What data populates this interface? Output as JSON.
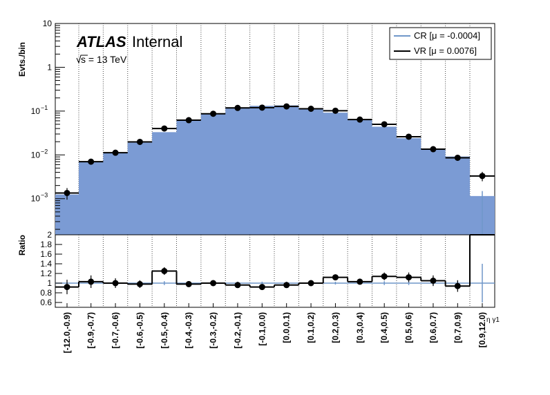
{
  "chart_data": {
    "type": "histogram",
    "atlas_label": "ATLAS",
    "atlas_status": "Internal",
    "energy_prefix": "s",
    "energy_suffix": " = 13 TeV",
    "x_axis_label": "η γ1",
    "colors": {
      "cr_fill": "#7b9bd4",
      "cr_line": "#6f96c9",
      "vr": "#000000",
      "grid": "#444444"
    },
    "categories": [
      "[-12.0,-0.9)",
      "[-0.9,-0.7)",
      "[-0.7,-0.6)",
      "[-0.6,-0.5)",
      "[-0.5,-0.4)",
      "[-0.4,-0.3)",
      "[-0.3,-0.2)",
      "[-0.2,-0.1)",
      "[-0.1,0.0)",
      "[0.0,0.1)",
      "[0.1,0.2)",
      "[0.2,0.3)",
      "[0.3,0.4)",
      "[0.4,0.5)",
      "[0.5,0.6)",
      "[0.6,0.7)",
      "[0.7,0.9)",
      "[0.9,12.0)"
    ],
    "top_panel": {
      "ylabel": "Evts./bin",
      "scale": "log",
      "ylim": [
        0.00015,
        10
      ],
      "yticks": [
        {
          "value": 10,
          "label": "10"
        },
        {
          "value": 1,
          "label": "1"
        },
        {
          "value": 0.1,
          "base": "10",
          "exp": "−1"
        },
        {
          "value": 0.01,
          "base": "10",
          "exp": "−2"
        },
        {
          "value": 0.001,
          "base": "10",
          "exp": "−3"
        }
      ]
    },
    "series": [
      {
        "name": "CR [μ = -0.0004]",
        "style": "filled-histogram",
        "values": [
          0.00125,
          0.0068,
          0.011,
          0.019,
          0.033,
          0.06,
          0.088,
          0.122,
          0.132,
          0.135,
          0.114,
          0.092,
          0.062,
          0.044,
          0.024,
          0.0133,
          0.0092,
          0.00115
        ]
      },
      {
        "name": "VR [μ = 0.0076]",
        "style": "step-histogram-with-points",
        "values": [
          0.00135,
          0.007,
          0.0112,
          0.0198,
          0.04,
          0.062,
          0.087,
          0.118,
          0.12,
          0.128,
          0.113,
          0.102,
          0.064,
          0.05,
          0.026,
          0.0135,
          0.0086,
          0.0033
        ],
        "errors": [
          0.0004,
          0.0008,
          0.0011,
          0.0015,
          0.003,
          0.004,
          0.005,
          0.006,
          0.006,
          0.007,
          0.006,
          0.006,
          0.004,
          0.004,
          0.002,
          0.0012,
          0.0009,
          0.0008
        ]
      }
    ],
    "ratio_panel": {
      "ylabel": "Ratio",
      "ylim": [
        0.5,
        2.0
      ],
      "yticks": [
        0.6,
        0.8,
        1,
        1.2,
        1.4,
        1.6,
        1.8,
        2
      ],
      "values": [
        0.92,
        1.03,
        1.0,
        0.98,
        1.25,
        0.98,
        1.0,
        0.96,
        0.92,
        0.96,
        1.0,
        1.12,
        1.03,
        1.14,
        1.12,
        1.05,
        0.94,
        2.0
      ],
      "errors": [
        0.15,
        0.13,
        0.1,
        0.08,
        0.08,
        0.06,
        0.05,
        0.04,
        0.04,
        0.04,
        0.04,
        0.05,
        0.06,
        0.08,
        0.1,
        0.11,
        0.12,
        0.5
      ],
      "cr_band": [
        0.0,
        0.05,
        0.05,
        0.04,
        0.04,
        0.03,
        0.03,
        0.03,
        0.03,
        0.03,
        0.03,
        0.03,
        0.03,
        0.04,
        0.04,
        0.05,
        0.05,
        0.4
      ]
    }
  }
}
